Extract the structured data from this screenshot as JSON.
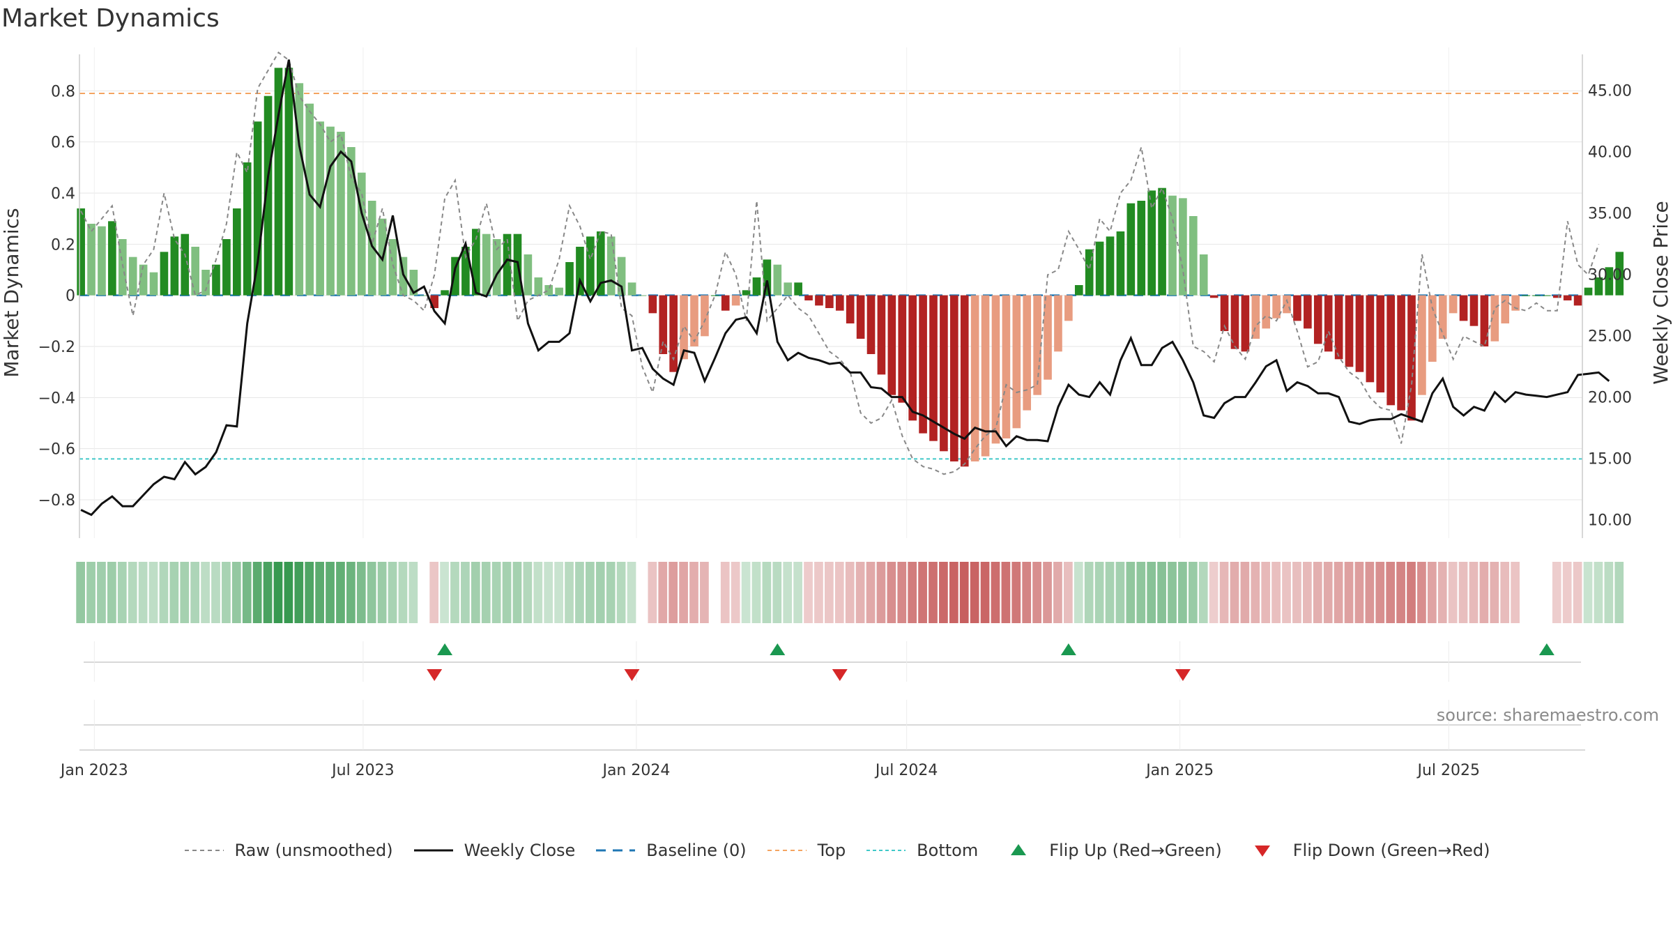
{
  "chart_data": {
    "type": "bar",
    "title": "Market Dynamics",
    "ylabel": "Market Dynamics",
    "y2label": "Weekly Close Price",
    "ylim": [
      -0.95,
      0.97
    ],
    "y2lim": [
      8.5,
      48.5
    ],
    "yticks": [
      0.8,
      0.6,
      0.4,
      0.2,
      0,
      -0.2,
      -0.4,
      -0.6,
      -0.8
    ],
    "ytick_labels": [
      "0.8",
      "0.6",
      "0.4",
      "0.2",
      "0",
      "−0.2",
      "−0.4",
      "−0.6",
      "−0.8"
    ],
    "y2ticks": [
      45,
      40,
      35,
      30,
      25,
      20,
      15,
      10
    ],
    "y2tick_labels": [
      "45.00",
      "40.00",
      "35.00",
      "30.00",
      "25.00",
      "20.00",
      "15.00",
      "10.00"
    ],
    "xlim": [
      "2022-12-22",
      "2025-09-29"
    ],
    "xticks": [
      "2023-01-01",
      "2023-07-01",
      "2024-01-01",
      "2024-07-01",
      "2025-01-01",
      "2025-07-01"
    ],
    "xtick_labels": [
      "Jan 2023",
      "Jul 2023",
      "Jan 2024",
      "Jul 2024",
      "Jan 2025",
      "Jul 2025"
    ],
    "start_week": "2022-12-23",
    "top_threshold": 0.79,
    "bottom_threshold": -0.64,
    "baseline": 0,
    "grid": true,
    "legend_position": "bottom",
    "dynamics": [
      0.34,
      0.28,
      0.27,
      0.29,
      0.22,
      0.15,
      0.12,
      0.09,
      0.17,
      0.23,
      0.24,
      0.19,
      0.1,
      0.12,
      0.22,
      0.34,
      0.52,
      0.68,
      0.78,
      0.89,
      0.89,
      0.83,
      0.75,
      0.68,
      0.66,
      0.64,
      0.58,
      0.48,
      0.37,
      0.3,
      0.22,
      0.15,
      0.1,
      0.0,
      -0.05,
      0.02,
      0.15,
      0.19,
      0.26,
      0.24,
      0.22,
      0.24,
      0.24,
      0.16,
      0.07,
      0.04,
      0.03,
      0.13,
      0.19,
      0.23,
      0.25,
      0.23,
      0.15,
      0.05,
      -0.0,
      -0.07,
      -0.23,
      -0.3,
      -0.25,
      -0.2,
      -0.16,
      -0.0,
      -0.06,
      -0.04,
      0.02,
      0.07,
      0.14,
      0.12,
      0.05,
      0.05,
      -0.02,
      -0.04,
      -0.05,
      -0.06,
      -0.11,
      -0.17,
      -0.23,
      -0.31,
      -0.39,
      -0.42,
      -0.49,
      -0.54,
      -0.57,
      -0.61,
      -0.65,
      -0.67,
      -0.65,
      -0.63,
      -0.58,
      -0.56,
      -0.52,
      -0.45,
      -0.39,
      -0.33,
      -0.22,
      -0.1,
      0.04,
      0.18,
      0.21,
      0.23,
      0.25,
      0.36,
      0.37,
      0.41,
      0.42,
      0.39,
      0.38,
      0.31,
      0.16,
      -0.01,
      -0.14,
      -0.21,
      -0.22,
      -0.17,
      -0.13,
      -0.09,
      -0.07,
      -0.1,
      -0.13,
      -0.19,
      -0.22,
      -0.25,
      -0.28,
      -0.3,
      -0.34,
      -0.38,
      -0.43,
      -0.45,
      -0.49,
      -0.39,
      -0.26,
      -0.17,
      -0.07,
      -0.1,
      -0.12,
      -0.2,
      -0.18,
      -0.11,
      -0.06,
      -0.0,
      -0.0,
      -0.0,
      -0.01,
      -0.02,
      -0.04,
      0.03,
      0.07,
      0.11,
      0.17
    ],
    "raw": [
      0.33,
      0.25,
      0.3,
      0.35,
      0.12,
      -0.08,
      0.12,
      0.18,
      0.4,
      0.22,
      0.16,
      0.0,
      0.02,
      0.14,
      0.28,
      0.56,
      0.48,
      0.81,
      0.88,
      0.95,
      0.92,
      0.78,
      0.72,
      0.67,
      0.6,
      0.63,
      0.46,
      0.4,
      0.2,
      0.34,
      0.12,
      0.0,
      -0.02,
      -0.06,
      0.08,
      0.38,
      0.45,
      0.15,
      0.22,
      0.36,
      0.18,
      0.22,
      -0.1,
      -0.02,
      0.0,
      0.02,
      0.14,
      0.35,
      0.27,
      0.14,
      0.25,
      0.24,
      -0.05,
      -0.08,
      -0.28,
      -0.38,
      -0.18,
      -0.25,
      -0.12,
      -0.18,
      -0.1,
      0.0,
      0.17,
      0.08,
      -0.1,
      0.37,
      -0.1,
      -0.05,
      0.0,
      -0.05,
      -0.08,
      -0.15,
      -0.22,
      -0.25,
      -0.3,
      -0.46,
      -0.5,
      -0.48,
      -0.41,
      -0.55,
      -0.64,
      -0.67,
      -0.68,
      -0.7,
      -0.69,
      -0.66,
      -0.6,
      -0.55,
      -0.52,
      -0.35,
      -0.38,
      -0.37,
      -0.35,
      0.08,
      0.1,
      0.25,
      0.18,
      0.1,
      0.3,
      0.25,
      0.4,
      0.45,
      0.58,
      0.34,
      0.42,
      0.3,
      0.1,
      -0.2,
      -0.22,
      -0.26,
      -0.12,
      -0.2,
      -0.25,
      -0.12,
      -0.08,
      -0.1,
      -0.02,
      -0.14,
      -0.28,
      -0.26,
      -0.14,
      -0.24,
      -0.3,
      -0.33,
      -0.4,
      -0.44,
      -0.45,
      -0.58,
      -0.35,
      0.16,
      -0.05,
      -0.15,
      -0.25,
      -0.16,
      -0.18,
      -0.2,
      -0.05,
      -0.02,
      -0.05,
      -0.06,
      -0.03,
      -0.06,
      -0.06,
      0.29,
      0.12,
      0.08,
      0.2
    ],
    "close": [
      10.8,
      10.4,
      11.3,
      11.9,
      11.1,
      11.1,
      12.0,
      12.9,
      13.5,
      13.3,
      14.7,
      13.7,
      14.3,
      15.5,
      17.7,
      17.6,
      26.0,
      31.0,
      38.0,
      43.0,
      47.5,
      40.5,
      36.5,
      35.5,
      38.8,
      40.0,
      39.2,
      35.0,
      32.3,
      31.2,
      34.8,
      30.0,
      28.5,
      29.0,
      27.0,
      26.0,
      30.5,
      32.5,
      28.5,
      28.2,
      30.0,
      31.2,
      31.0,
      26.0,
      23.8,
      24.5,
      24.5,
      25.2,
      29.5,
      27.8,
      29.3,
      29.5,
      29.0,
      23.8,
      24.0,
      22.3,
      21.5,
      21.0,
      23.8,
      23.6,
      21.3,
      23.2,
      25.2,
      26.3,
      26.5,
      25.2,
      29.5,
      24.5,
      23.0,
      23.6,
      23.2,
      23.0,
      22.7,
      22.8,
      22.0,
      22.0,
      20.8,
      20.7,
      20.0,
      20.0,
      18.8,
      18.5,
      18.0,
      17.5,
      17.0,
      16.6,
      17.5,
      17.2,
      17.2,
      16.0,
      16.8,
      16.5,
      16.5,
      16.4,
      19.2,
      21.0,
      20.2,
      20.0,
      21.2,
      20.2,
      23.0,
      24.8,
      22.6,
      22.6,
      24.0,
      24.5,
      23.0,
      21.2,
      18.5,
      18.3,
      19.5,
      20.0,
      20.0,
      21.2,
      22.5,
      23.0,
      20.5,
      21.2,
      20.9,
      20.3,
      20.3,
      20.0,
      18.0,
      17.8,
      18.1,
      18.2,
      18.2,
      18.6,
      18.3,
      18.0,
      20.3,
      21.5,
      19.2,
      18.5,
      19.2,
      18.9,
      20.4,
      19.6,
      20.4,
      20.2,
      20.1,
      20.0,
      20.2,
      20.4,
      21.8,
      21.9,
      22.0,
      21.3
    ],
    "flips_up": [
      "2023-08-25",
      "2024-04-05",
      "2024-10-18",
      "2025-09-05"
    ],
    "flips_down": [
      "2023-08-18",
      "2023-12-29",
      "2024-05-17",
      "2025-01-03"
    ],
    "legend": [
      {
        "label": "Raw (unsmoothed)",
        "swatch": "raw"
      },
      {
        "label": "Weekly Close",
        "swatch": "close"
      },
      {
        "label": "Baseline (0)",
        "swatch": "baseline"
      },
      {
        "label": "Top",
        "swatch": "top"
      },
      {
        "label": "Bottom",
        "swatch": "bottom"
      },
      {
        "label": "Flip Up (Red→Green)",
        "swatch": "flip-up"
      },
      {
        "label": "Flip Down (Green→Red)",
        "swatch": "flip-down"
      }
    ]
  },
  "source": "source: sharemaestro.com",
  "colors": {
    "green_strong": "#228b22",
    "green_light": "#80bf80",
    "red_strong": "#b22222",
    "red_light": "#e89c80",
    "close_line": "#111111",
    "raw_line": "#888888",
    "baseline": "#1f77b4",
    "top": "#f4a460",
    "bottom": "#40c8c8",
    "flip_up": "#1a9850",
    "flip_down": "#d62728"
  }
}
